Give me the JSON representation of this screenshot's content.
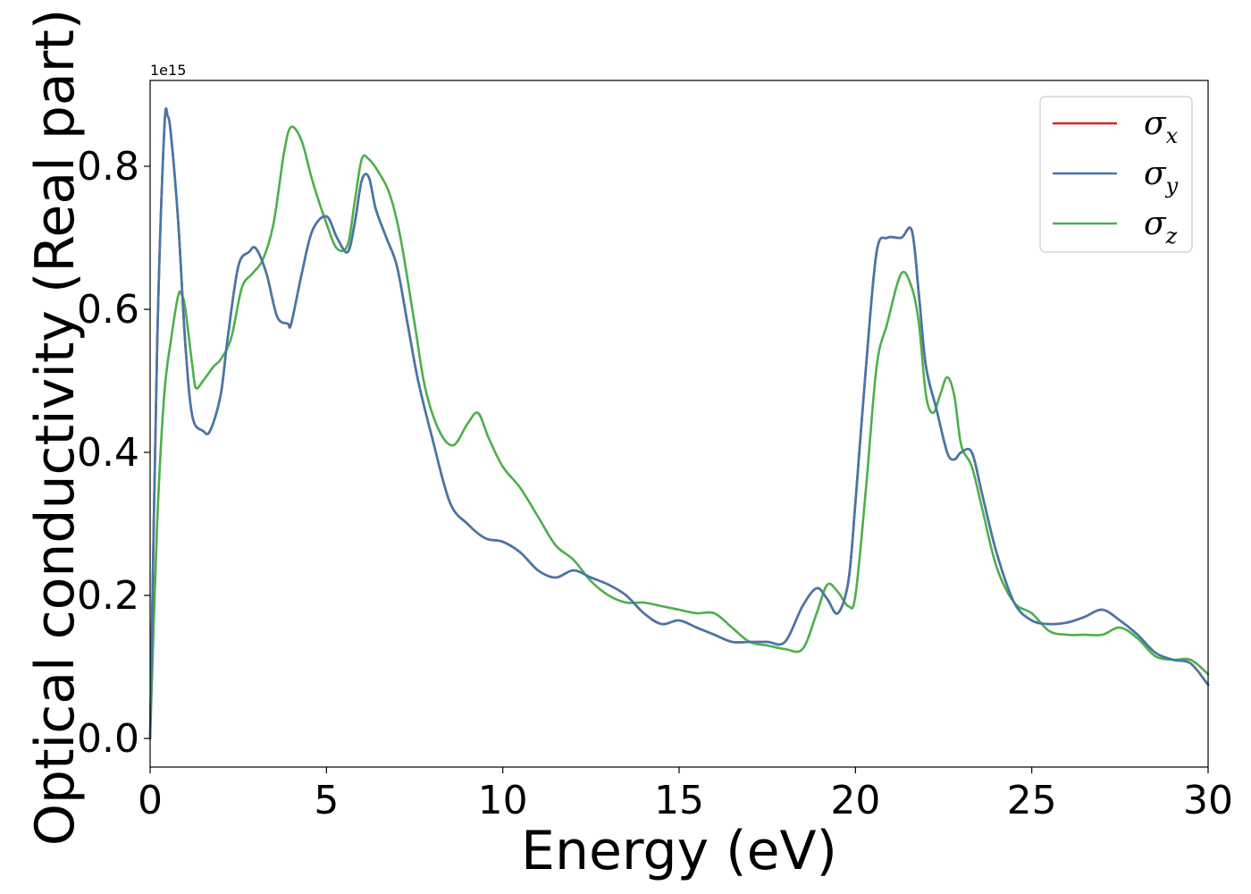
{
  "chart_data": {
    "type": "line",
    "xlabel": "Energy (eV)",
    "ylabel": "Optical conductivity (Real part)",
    "y_offset_label": "1e15",
    "xlim": [
      0,
      30
    ],
    "ylim": [
      -0.04,
      0.92
    ],
    "xticks": [
      0,
      5,
      10,
      15,
      20,
      25,
      30
    ],
    "xtick_labels": [
      "0",
      "5",
      "10",
      "15",
      "20",
      "25",
      "30"
    ],
    "yticks": [
      0.0,
      0.2,
      0.4,
      0.6,
      0.8
    ],
    "ytick_labels": [
      "0.0",
      "0.2",
      "0.4",
      "0.6",
      "0.8"
    ],
    "grid": false,
    "legend": {
      "position": "top-right"
    },
    "series": [
      {
        "name": "σx",
        "symbol": "σ",
        "subscript": "x",
        "color": "#d62728",
        "x": [
          0,
          0.2,
          0.4,
          0.5,
          0.6,
          0.8,
          1.0,
          1.2,
          1.5,
          1.7,
          2.0,
          2.2,
          2.5,
          2.8,
          3.0,
          3.3,
          3.6,
          3.9,
          4.0,
          4.3,
          4.6,
          5.0,
          5.3,
          5.6,
          5.8,
          6.0,
          6.2,
          6.4,
          6.7,
          7.0,
          7.3,
          7.6,
          8.0,
          8.5,
          9.0,
          9.5,
          10.0,
          10.5,
          11.0,
          11.5,
          12.0,
          12.5,
          13.0,
          13.5,
          14.0,
          14.5,
          15.0,
          15.5,
          16.0,
          16.5,
          17.0,
          17.5,
          18.0,
          18.5,
          18.9,
          19.2,
          19.5,
          19.8,
          20.0,
          20.3,
          20.6,
          20.9,
          21.3,
          21.6,
          21.8,
          22.0,
          22.3,
          22.6,
          22.8,
          23.0,
          23.3,
          23.6,
          24.0,
          24.5,
          25.0,
          25.5,
          26.0,
          26.5,
          27.0,
          27.5,
          28.0,
          28.5,
          29.0,
          29.5,
          30.0
        ],
        "y": [
          0.0,
          0.55,
          0.85,
          0.87,
          0.84,
          0.72,
          0.55,
          0.45,
          0.43,
          0.43,
          0.48,
          0.56,
          0.66,
          0.68,
          0.685,
          0.65,
          0.59,
          0.58,
          0.58,
          0.65,
          0.71,
          0.73,
          0.7,
          0.68,
          0.72,
          0.78,
          0.785,
          0.74,
          0.7,
          0.66,
          0.58,
          0.5,
          0.42,
          0.33,
          0.3,
          0.28,
          0.275,
          0.26,
          0.235,
          0.225,
          0.235,
          0.225,
          0.215,
          0.2,
          0.175,
          0.16,
          0.165,
          0.155,
          0.145,
          0.135,
          0.135,
          0.135,
          0.135,
          0.185,
          0.21,
          0.195,
          0.175,
          0.22,
          0.33,
          0.52,
          0.68,
          0.7,
          0.7,
          0.71,
          0.62,
          0.52,
          0.46,
          0.4,
          0.39,
          0.4,
          0.4,
          0.34,
          0.26,
          0.19,
          0.165,
          0.16,
          0.162,
          0.17,
          0.18,
          0.165,
          0.145,
          0.12,
          0.11,
          0.105,
          0.075
        ]
      },
      {
        "name": "σy",
        "symbol": "σ",
        "subscript": "y",
        "color": "#4477aa",
        "x": [
          0,
          0.2,
          0.4,
          0.5,
          0.6,
          0.8,
          1.0,
          1.2,
          1.5,
          1.7,
          2.0,
          2.2,
          2.5,
          2.8,
          3.0,
          3.3,
          3.6,
          3.9,
          4.0,
          4.3,
          4.6,
          5.0,
          5.3,
          5.6,
          5.8,
          6.0,
          6.2,
          6.4,
          6.7,
          7.0,
          7.3,
          7.6,
          8.0,
          8.5,
          9.0,
          9.5,
          10.0,
          10.5,
          11.0,
          11.5,
          12.0,
          12.5,
          13.0,
          13.5,
          14.0,
          14.5,
          15.0,
          15.5,
          16.0,
          16.5,
          17.0,
          17.5,
          18.0,
          18.5,
          18.9,
          19.2,
          19.5,
          19.8,
          20.0,
          20.3,
          20.6,
          20.9,
          21.3,
          21.6,
          21.8,
          22.0,
          22.3,
          22.6,
          22.8,
          23.0,
          23.3,
          23.6,
          24.0,
          24.5,
          25.0,
          25.5,
          26.0,
          26.5,
          27.0,
          27.5,
          28.0,
          28.5,
          29.0,
          29.5,
          30.0
        ],
        "y": [
          0.0,
          0.55,
          0.85,
          0.87,
          0.84,
          0.72,
          0.55,
          0.45,
          0.43,
          0.43,
          0.48,
          0.56,
          0.66,
          0.68,
          0.685,
          0.65,
          0.59,
          0.58,
          0.58,
          0.65,
          0.71,
          0.73,
          0.7,
          0.68,
          0.72,
          0.78,
          0.785,
          0.74,
          0.7,
          0.66,
          0.58,
          0.5,
          0.42,
          0.33,
          0.3,
          0.28,
          0.275,
          0.26,
          0.235,
          0.225,
          0.235,
          0.225,
          0.215,
          0.2,
          0.175,
          0.16,
          0.165,
          0.155,
          0.145,
          0.135,
          0.135,
          0.135,
          0.135,
          0.185,
          0.21,
          0.195,
          0.175,
          0.22,
          0.33,
          0.52,
          0.68,
          0.7,
          0.7,
          0.71,
          0.62,
          0.52,
          0.46,
          0.4,
          0.39,
          0.4,
          0.4,
          0.34,
          0.26,
          0.19,
          0.165,
          0.16,
          0.162,
          0.17,
          0.18,
          0.165,
          0.145,
          0.12,
          0.11,
          0.105,
          0.075
        ]
      },
      {
        "name": "σz",
        "symbol": "σ",
        "subscript": "z",
        "color": "#4daf4a",
        "x": [
          0,
          0.2,
          0.4,
          0.6,
          0.8,
          0.9,
          1.0,
          1.2,
          1.3,
          1.5,
          1.8,
          2.0,
          2.3,
          2.6,
          2.9,
          3.2,
          3.5,
          3.8,
          4.0,
          4.3,
          4.6,
          5.0,
          5.3,
          5.6,
          5.8,
          6.0,
          6.2,
          6.5,
          6.8,
          7.1,
          7.5,
          7.8,
          8.2,
          8.6,
          9.0,
          9.3,
          9.6,
          10.0,
          10.5,
          11.0,
          11.5,
          12.0,
          12.5,
          13.0,
          13.5,
          14.0,
          14.5,
          15.0,
          15.5,
          16.0,
          16.5,
          17.0,
          17.5,
          18.0,
          18.5,
          18.9,
          19.2,
          19.5,
          19.8,
          20.0,
          20.3,
          20.6,
          20.9,
          21.3,
          21.6,
          21.8,
          22.0,
          22.2,
          22.4,
          22.6,
          22.8,
          23.0,
          23.3,
          23.6,
          24.0,
          24.5,
          25.0,
          25.5,
          26.0,
          26.5,
          27.0,
          27.5,
          28.0,
          28.5,
          29.0,
          29.5,
          30.0
        ],
        "y": [
          0.0,
          0.3,
          0.48,
          0.56,
          0.62,
          0.62,
          0.6,
          0.52,
          0.49,
          0.5,
          0.52,
          0.53,
          0.56,
          0.63,
          0.65,
          0.67,
          0.72,
          0.82,
          0.855,
          0.835,
          0.78,
          0.72,
          0.685,
          0.69,
          0.75,
          0.81,
          0.81,
          0.79,
          0.76,
          0.7,
          0.58,
          0.49,
          0.43,
          0.41,
          0.44,
          0.455,
          0.42,
          0.38,
          0.35,
          0.31,
          0.27,
          0.25,
          0.22,
          0.2,
          0.19,
          0.19,
          0.185,
          0.18,
          0.175,
          0.175,
          0.155,
          0.135,
          0.13,
          0.125,
          0.125,
          0.175,
          0.215,
          0.205,
          0.185,
          0.2,
          0.35,
          0.52,
          0.58,
          0.65,
          0.63,
          0.58,
          0.48,
          0.455,
          0.48,
          0.505,
          0.48,
          0.41,
          0.38,
          0.32,
          0.24,
          0.19,
          0.175,
          0.15,
          0.145,
          0.145,
          0.145,
          0.155,
          0.14,
          0.115,
          0.11,
          0.11,
          0.09
        ]
      }
    ]
  }
}
